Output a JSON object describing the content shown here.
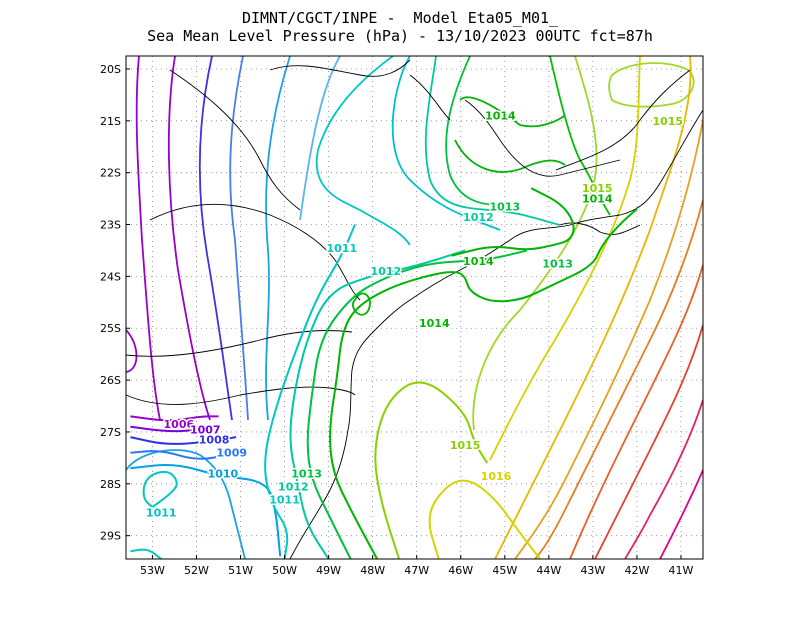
{
  "header": {
    "line1": "DIMNT/CGCT/INPE -  Model Eta05_M01_",
    "line2": "Sea Mean Level Pressure (hPa) - 13/10/2023 00UTC fct=87h"
  },
  "chart_data": {
    "type": "contour-map",
    "xlim": [
      -53.6,
      -40.5
    ],
    "ylim": [
      -29.45,
      -19.75
    ],
    "grid": true,
    "x_ticks": [
      {
        "value": -53,
        "label": "53W"
      },
      {
        "value": -52,
        "label": "52W"
      },
      {
        "value": -51,
        "label": "51W"
      },
      {
        "value": -50,
        "label": "50W"
      },
      {
        "value": -49,
        "label": "49W"
      },
      {
        "value": -48,
        "label": "48W"
      },
      {
        "value": -47,
        "label": "47W"
      },
      {
        "value": -46,
        "label": "46W"
      },
      {
        "value": -45,
        "label": "45W"
      },
      {
        "value": -44,
        "label": "44W"
      },
      {
        "value": -43,
        "label": "43W"
      },
      {
        "value": -42,
        "label": "42W"
      },
      {
        "value": -41,
        "label": "41W"
      }
    ],
    "y_ticks": [
      {
        "value": -20,
        "label": "20S"
      },
      {
        "value": -21,
        "label": "21S"
      },
      {
        "value": -22,
        "label": "22S"
      },
      {
        "value": -23,
        "label": "23S"
      },
      {
        "value": -24,
        "label": "24S"
      },
      {
        "value": -25,
        "label": "25S"
      },
      {
        "value": -26,
        "label": "26S"
      },
      {
        "value": -27,
        "label": "27S"
      },
      {
        "value": -28,
        "label": "28S"
      },
      {
        "value": -29,
        "label": "29S"
      }
    ],
    "contours": [
      {
        "level": 1006,
        "color": "#9a00c8",
        "lines": [
          [
            [
              -53.5,
              -26.7
            ],
            [
              -52.6,
              -26.8
            ],
            [
              -51.9,
              -26.7
            ],
            [
              -51.5,
              -26.7
            ]
          ]
        ]
      },
      {
        "level": 1007,
        "color": "#7a00e0",
        "lines": [
          [
            [
              -53.5,
              -26.9
            ],
            [
              -52.6,
              -27.0
            ],
            [
              -51.9,
              -26.95
            ],
            [
              -51.5,
              -26.9
            ]
          ]
        ]
      },
      {
        "level": 1008,
        "color": "#3030e8",
        "lines": [
          [
            [
              -53.5,
              -27.1
            ],
            [
              -52.7,
              -27.25
            ],
            [
              -51.8,
              -27.2
            ],
            [
              -51.1,
              -27.1
            ]
          ]
        ]
      },
      {
        "level": 1009,
        "color": "#2a78f0",
        "lines": [
          [
            [
              -53.5,
              -27.4
            ],
            [
              -52.8,
              -27.35
            ],
            [
              -52.0,
              -27.55
            ],
            [
              -51.3,
              -27.45
            ]
          ]
        ]
      },
      {
        "level": 1010,
        "color": "#00a0e8",
        "lines": [
          [
            [
              -53.5,
              -27.7
            ],
            [
              -52.5,
              -27.6
            ],
            [
              -51.5,
              -27.85
            ],
            [
              -50.4,
              -27.95
            ],
            [
              -50.2,
              -28.5
            ],
            [
              -50.1,
              -29.4
            ]
          ]
        ]
      },
      {
        "level": 1011,
        "color": "#00c8c0",
        "lines": [
          [
            [
              -53.0,
              -28.45
            ],
            [
              -52.6,
              -28.2
            ],
            [
              -52.4,
              -28.0
            ],
            [
              -52.6,
              -27.75
            ],
            [
              -53.0,
              -27.8
            ],
            [
              -53.2,
              -28.0
            ],
            [
              -53.2,
              -28.3
            ],
            [
              -53.0,
              -28.45
            ]
          ],
          [
            [
              -53.5,
              -29.3
            ],
            [
              -53.1,
              -29.25
            ],
            [
              -52.8,
              -29.45
            ]
          ],
          [
            [
              -50.0,
              -29.45
            ],
            [
              -49.9,
              -28.9
            ],
            [
              -50.3,
              -28.4
            ],
            [
              -50.5,
              -27.6
            ],
            [
              -50.2,
              -26.5
            ],
            [
              -49.6,
              -25.1
            ],
            [
              -49.2,
              -24.3
            ],
            [
              -48.7,
              -23.6
            ],
            [
              -48.4,
              -23.0
            ]
          ]
        ]
      },
      {
        "level": 1012,
        "color": "#00c8a0",
        "lines": [
          [
            [
              -49.0,
              -29.45
            ],
            [
              -49.5,
              -28.8
            ],
            [
              -49.7,
              -28.0
            ],
            [
              -49.9,
              -27.2
            ],
            [
              -49.8,
              -26.3
            ],
            [
              -49.5,
              -25.2
            ],
            [
              -49.0,
              -24.3
            ],
            [
              -48.1,
              -24.0
            ],
            [
              -47.0,
              -23.8
            ],
            [
              -45.9,
              -23.5
            ]
          ]
        ]
      },
      {
        "level": 1013,
        "color": "#00c040",
        "lines": [
          [
            [
              -48.5,
              -29.45
            ],
            [
              -49.0,
              -28.6
            ],
            [
              -49.4,
              -27.9
            ],
            [
              -49.5,
              -27.2
            ],
            [
              -49.4,
              -26.4
            ],
            [
              -49.2,
              -25.2
            ],
            [
              -48.5,
              -24.4
            ],
            [
              -47.8,
              -24.05
            ],
            [
              -46.8,
              -23.75
            ],
            [
              -45.8,
              -23.7
            ],
            [
              -45.2,
              -23.65
            ],
            [
              -44.5,
              -23.5
            ]
          ]
        ]
      },
      {
        "level": 1014,
        "color": "#00b400",
        "lines": [
          [
            [
              -46.2,
              -23.6
            ],
            [
              -45.3,
              -23.4
            ],
            [
              -44.5,
              -23.5
            ],
            [
              -43.9,
              -23.4
            ],
            [
              -43.5,
              -23.3
            ],
            [
              -43.4,
              -23.0
            ],
            [
              -43.7,
              -22.6
            ],
            [
              -44.4,
              -22.3
            ]
          ],
          [
            [
              -47.9,
              -29.45
            ],
            [
              -48.5,
              -28.5
            ],
            [
              -48.9,
              -27.8
            ],
            [
              -49.0,
              -27.0
            ],
            [
              -48.8,
              -25.9
            ],
            [
              -48.7,
              -25.1
            ],
            [
              -48.4,
              -24.6
            ],
            [
              -47.6,
              -24.2
            ],
            [
              -46.6,
              -23.95
            ],
            [
              -46.1,
              -23.9
            ],
            [
              -45.9,
              -24.0
            ],
            [
              -45.8,
              -24.3
            ],
            [
              -45.3,
              -24.5
            ],
            [
              -44.6,
              -24.45
            ],
            [
              -44.0,
              -24.2
            ],
            [
              -43.0,
              -23.8
            ],
            [
              -42.8,
              -23.4
            ],
            [
              -42.4,
              -23.0
            ],
            [
              -42.0,
              -22.7
            ]
          ]
        ]
      },
      {
        "level": 1015,
        "color": "#88d000",
        "lines": [
          [
            [
              -47.4,
              -29.45
            ],
            [
              -47.8,
              -28.4
            ],
            [
              -48.0,
              -27.4
            ],
            [
              -47.7,
              -26.4
            ],
            [
              -46.9,
              -25.9
            ],
            [
              -45.9,
              -26.6
            ],
            [
              -45.7,
              -27.2
            ],
            [
              -45.4,
              -27.6
            ]
          ]
        ]
      },
      {
        "level": 1016,
        "color": "#d4d400",
        "lines": [
          [
            [
              -46.5,
              -29.45
            ],
            [
              -46.8,
              -28.6
            ],
            [
              -46.3,
              -28.0
            ],
            [
              -45.8,
              -27.9
            ],
            [
              -45.2,
              -28.3
            ],
            [
              -44.7,
              -28.9
            ],
            [
              -44.2,
              -29.45
            ]
          ]
        ]
      }
    ],
    "contour_labels": [
      {
        "text": "1006",
        "x": -52.4,
        "y": -26.85,
        "color": "#9a00c8"
      },
      {
        "text": "1007",
        "x": -51.8,
        "y": -26.95,
        "color": "#7a00e0"
      },
      {
        "text": "1008",
        "x": -51.6,
        "y": -27.15,
        "color": "#3030e8"
      },
      {
        "text": "1009",
        "x": -51.2,
        "y": -27.4,
        "color": "#2a78f0"
      },
      {
        "text": "1010",
        "x": -51.4,
        "y": -27.8,
        "color": "#00a0e8"
      },
      {
        "text": "1011",
        "x": -52.8,
        "y": -28.55,
        "color": "#00c8c0"
      },
      {
        "text": "1011",
        "x": -50.0,
        "y": -28.3,
        "color": "#00c8c0"
      },
      {
        "text": "1011",
        "x": -48.7,
        "y": -23.45,
        "color": "#00c8c0"
      },
      {
        "text": "1012",
        "x": -49.8,
        "y": -28.05,
        "color": "#00c8a0"
      },
      {
        "text": "1012",
        "x": -47.7,
        "y": -23.9,
        "color": "#00c8a0"
      },
      {
        "text": "1012",
        "x": -45.6,
        "y": -22.85,
        "color": "#00c8a0"
      },
      {
        "text": "1013",
        "x": -49.5,
        "y": -27.8,
        "color": "#00c040"
      },
      {
        "text": "1013",
        "x": -45.0,
        "y": -22.65,
        "color": "#00c040"
      },
      {
        "text": "1013",
        "x": -43.8,
        "y": -23.75,
        "color": "#00c040"
      },
      {
        "text": "1014",
        "x": -45.1,
        "y": -20.9,
        "color": "#00b400"
      },
      {
        "text": "1014",
        "x": -45.6,
        "y": -23.7,
        "color": "#00b400"
      },
      {
        "text": "1014",
        "x": -46.6,
        "y": -24.9,
        "color": "#00b400"
      },
      {
        "text": "1014",
        "x": -42.9,
        "y": -22.5,
        "color": "#00b400"
      },
      {
        "text": "1015",
        "x": -42.9,
        "y": -22.3,
        "color": "#88d000"
      },
      {
        "text": "1015",
        "x": -41.3,
        "y": -21.0,
        "color": "#88d000"
      },
      {
        "text": "1015",
        "x": -45.9,
        "y": -27.25,
        "color": "#88d000"
      },
      {
        "text": "1016",
        "x": -45.2,
        "y": -27.85,
        "color": "#d4d400"
      }
    ]
  }
}
